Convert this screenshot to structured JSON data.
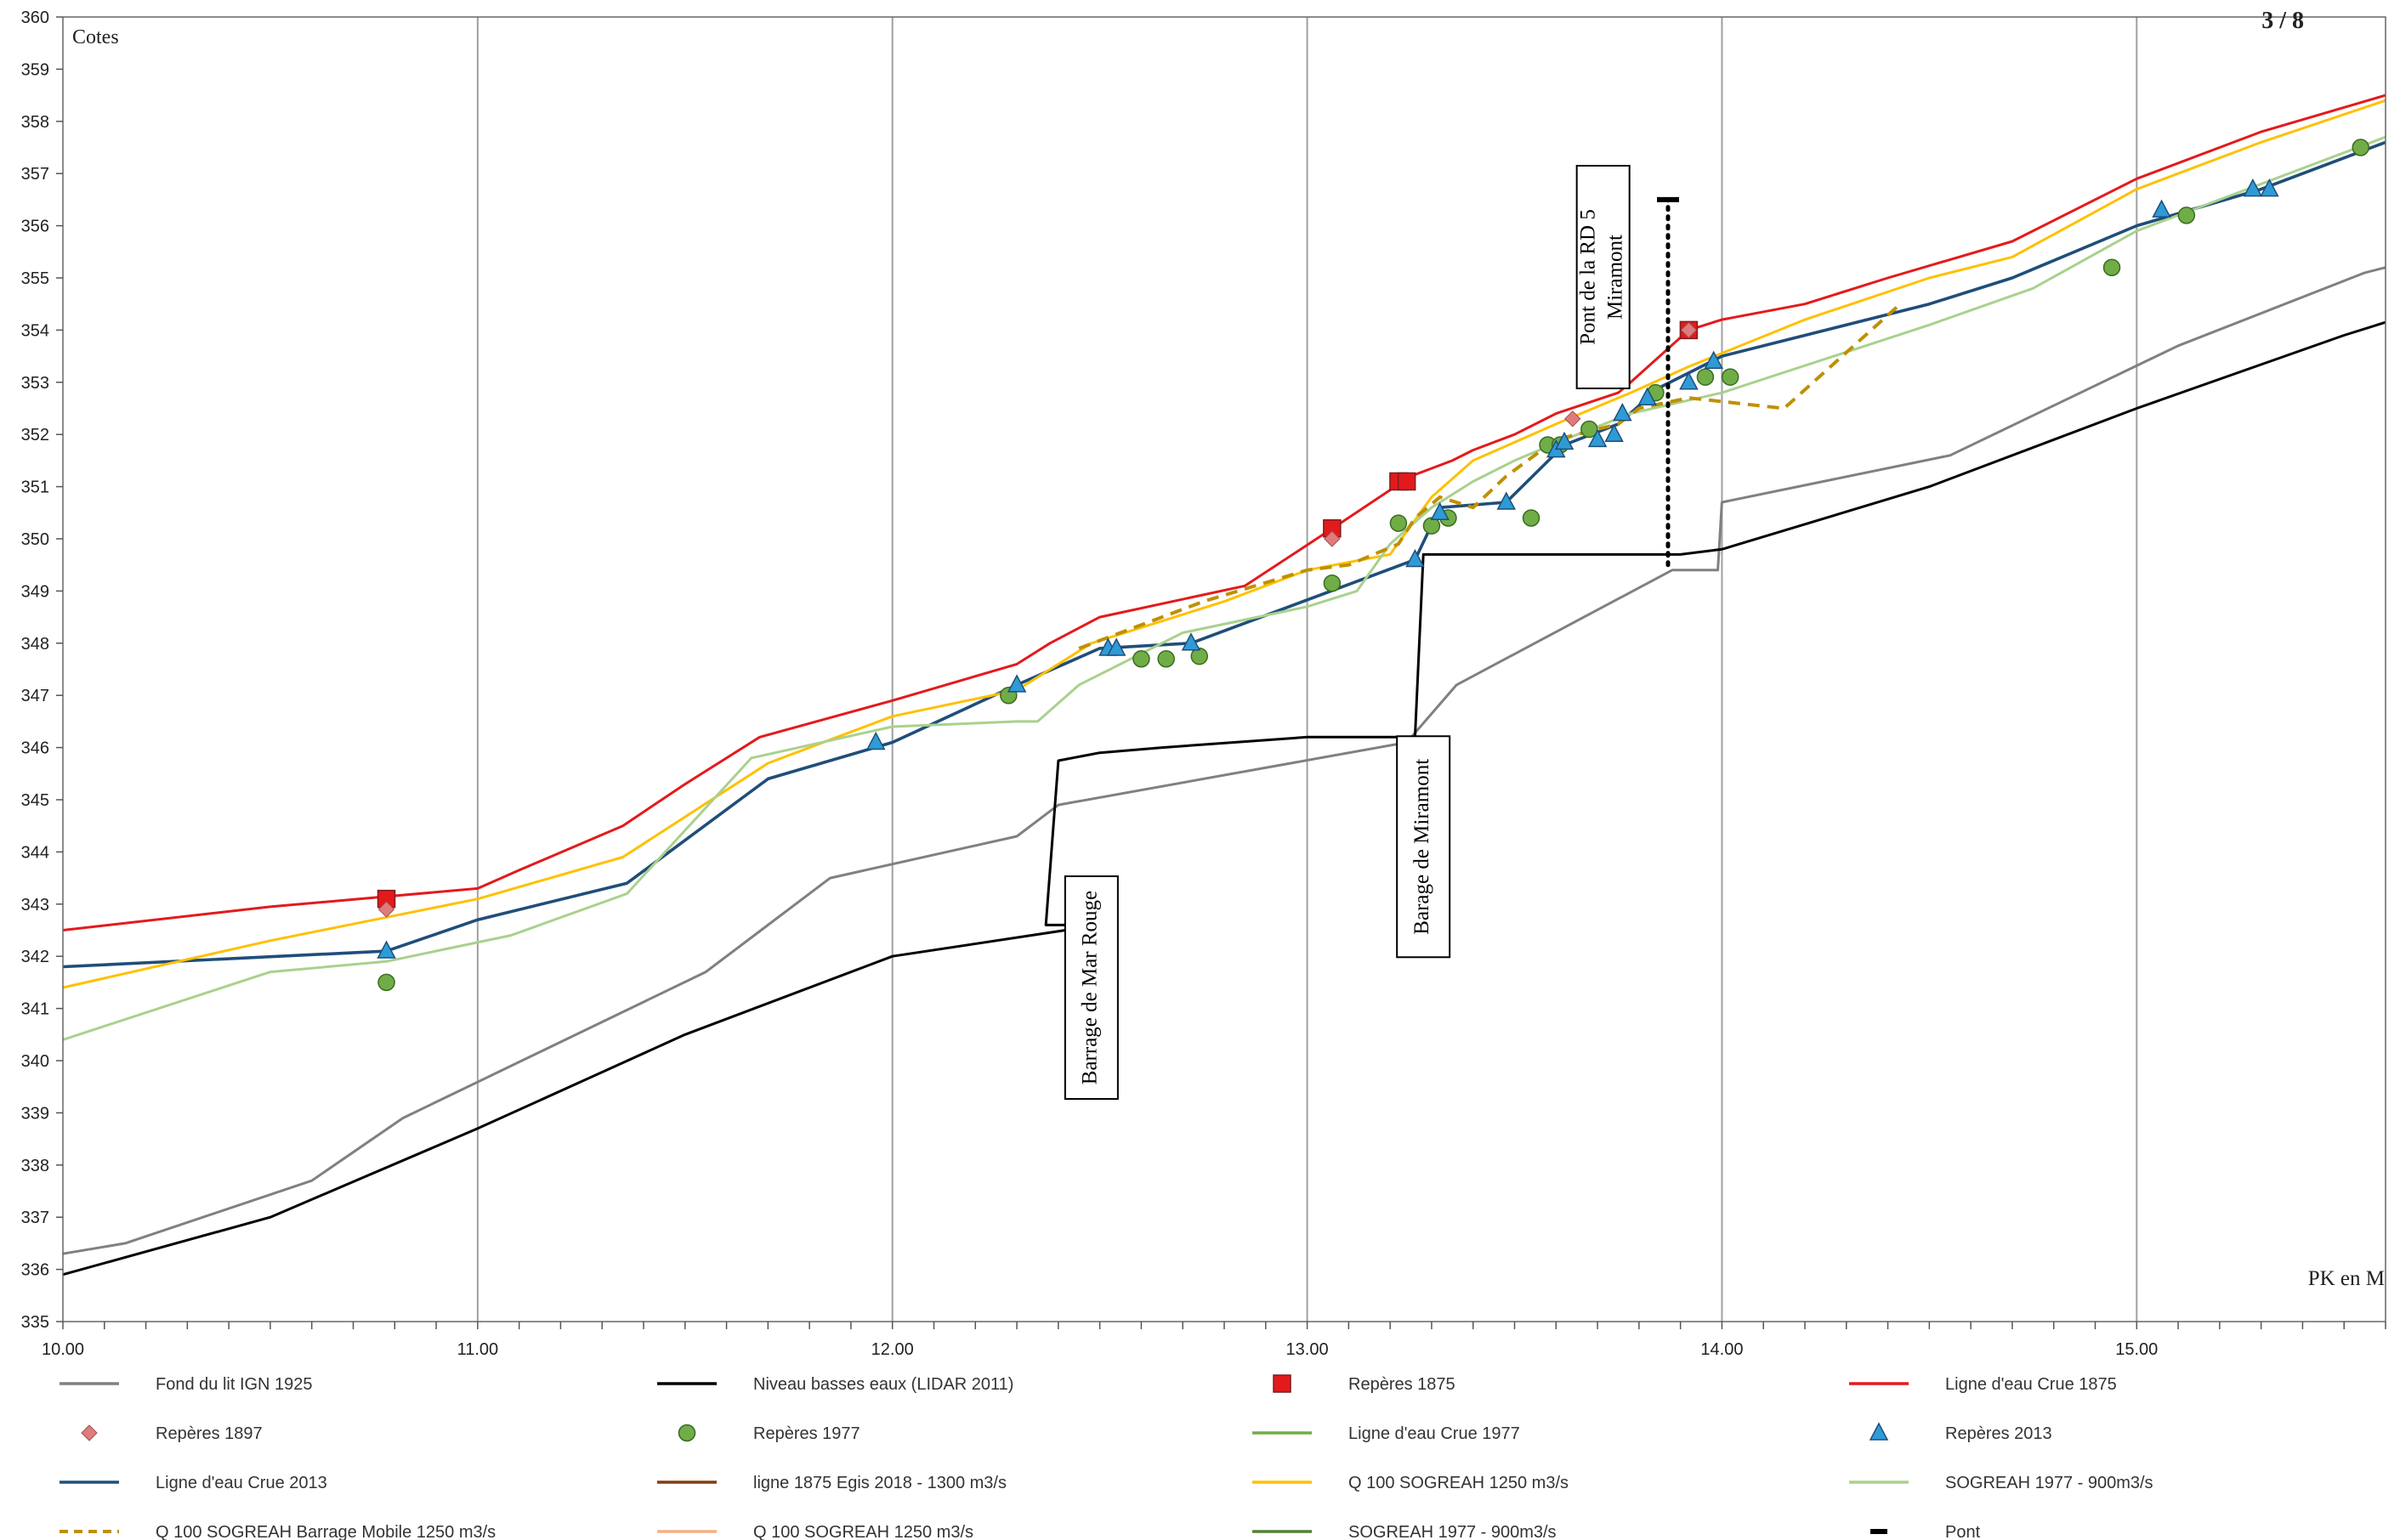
{
  "chart_data": {
    "type": "line",
    "ylabel": "Cotes",
    "xlabel": "PK en  M",
    "page_number": "3 / 8",
    "xlim": [
      10,
      15.6
    ],
    "ylim": [
      335,
      360
    ],
    "x_ticks": [
      "10.00",
      "11.00",
      "12.00",
      "13.00",
      "14.00",
      "15.00"
    ],
    "y_ticks": [
      "335",
      "336",
      "337",
      "338",
      "339",
      "340",
      "341",
      "342",
      "343",
      "344",
      "345",
      "346",
      "347",
      "348",
      "349",
      "350",
      "351",
      "352",
      "353",
      "354",
      "355",
      "356",
      "357",
      "358",
      "359",
      "360"
    ],
    "grid": "vertical",
    "legend_position": "bottom",
    "annotations": [
      {
        "text": "Barrage de Mar Rouge",
        "x": 12.48,
        "y": 341.4
      },
      {
        "text": "Barage de Miramont",
        "x": 13.28,
        "y": 344.1
      },
      {
        "text": "Pont de la RD 5",
        "x": 13.65,
        "y": 355.0
      },
      {
        "text": "Miramont",
        "x": 13.7,
        "y": 355.0
      }
    ],
    "series": [
      {
        "name": "Fond du lit IGN 1925",
        "type": "line",
        "color": "#808080",
        "x": [
          10.0,
          10.15,
          10.6,
          10.82,
          11.55,
          11.85,
          12.3,
          12.4,
          13.24,
          13.36,
          13.88,
          13.99,
          14.0,
          14.55,
          15.1,
          15.55,
          15.6
        ],
        "y": [
          336.3,
          336.5,
          337.7,
          338.9,
          341.7,
          343.5,
          344.3,
          344.9,
          346.1,
          347.2,
          349.4,
          349.4,
          350.7,
          351.6,
          353.7,
          355.1,
          355.2
        ]
      },
      {
        "name": "Niveau basses eaux (LIDAR 2011)",
        "type": "line",
        "color": "#000000",
        "x": [
          10.0,
          10.5,
          11.0,
          11.5,
          12.0,
          12.5,
          12.37,
          12.4,
          12.5,
          12.65,
          13.0,
          13.26,
          13.28,
          13.9,
          14.0,
          14.5,
          15.0,
          15.5,
          15.6
        ],
        "y": [
          335.9,
          337.0,
          338.7,
          340.5,
          342.0,
          342.6,
          342.6,
          345.75,
          345.9,
          346.0,
          346.2,
          346.2,
          349.7,
          349.7,
          349.8,
          351.0,
          352.5,
          353.9,
          354.15
        ]
      },
      {
        "name": "Repères 1875",
        "type": "scatter",
        "marker": "square",
        "color": "#e31a1c",
        "x": [
          10.78,
          13.06,
          13.22,
          13.24,
          13.92
        ],
        "y": [
          343.1,
          350.2,
          351.1,
          351.1,
          354.0
        ]
      },
      {
        "name": "Ligne d'eau Crue 1875",
        "type": "line",
        "color": "#e31a1c",
        "x": [
          10.0,
          10.5,
          11.0,
          11.1,
          11.35,
          11.5,
          11.68,
          12.0,
          12.3,
          12.38,
          12.5,
          12.85,
          13.08,
          13.25,
          13.3,
          13.35,
          13.4,
          13.5,
          13.6,
          13.75,
          13.78,
          13.92,
          14.0,
          14.2,
          14.4,
          14.7,
          15.0,
          15.3,
          15.6
        ],
        "y": [
          342.5,
          342.95,
          343.3,
          343.65,
          344.5,
          345.3,
          346.2,
          346.9,
          347.6,
          348.0,
          348.5,
          349.1,
          350.3,
          351.2,
          351.35,
          351.5,
          351.7,
          352.0,
          352.4,
          352.8,
          353.0,
          354.0,
          354.2,
          354.5,
          355.0,
          355.7,
          356.9,
          357.8,
          358.5
        ]
      },
      {
        "name": "Repères 1897",
        "type": "scatter",
        "marker": "diamond",
        "color": "#e07b7b",
        "x": [
          10.78,
          13.06,
          13.64,
          13.92
        ],
        "y": [
          342.9,
          350.0,
          352.3,
          354.0
        ]
      },
      {
        "name": "Repères 1977",
        "type": "scatter",
        "marker": "circle",
        "color": "#70ad47",
        "x": [
          10.78,
          12.28,
          12.6,
          12.66,
          12.74,
          13.06,
          13.22,
          13.3,
          13.34,
          13.54,
          13.58,
          13.61,
          13.68,
          13.84,
          13.96,
          14.02,
          14.94,
          15.12,
          15.54
        ],
        "y": [
          341.5,
          347.0,
          347.7,
          347.7,
          347.75,
          349.15,
          350.3,
          350.25,
          350.4,
          350.4,
          351.8,
          351.8,
          352.1,
          352.8,
          353.1,
          353.1,
          355.2,
          356.2,
          357.5
        ]
      },
      {
        "name": "Ligne d'eau Crue 1977",
        "type": "line",
        "color": "#70ad47",
        "x": [],
        "y": []
      },
      {
        "name": "Repères 2013",
        "type": "scatter",
        "marker": "triangle",
        "color": "#2e9bd6",
        "x": [
          10.78,
          11.96,
          12.3,
          12.52,
          12.54,
          12.72,
          13.26,
          13.32,
          13.48,
          13.6,
          13.62,
          13.7,
          13.74,
          13.82,
          13.76,
          13.92,
          13.98,
          15.06,
          15.28,
          15.32
        ],
        "y": [
          342.1,
          346.1,
          347.2,
          347.9,
          347.9,
          348.0,
          349.6,
          350.5,
          350.7,
          351.7,
          351.85,
          351.9,
          352.0,
          352.7,
          352.4,
          353.0,
          353.4,
          356.3,
          356.7,
          356.7
        ]
      },
      {
        "name": "Ligne d'eau Crue 2013",
        "type": "line",
        "color": "#1f4e79",
        "x": [
          10.0,
          10.78,
          11.0,
          11.36,
          11.7,
          12.0,
          12.3,
          12.5,
          12.72,
          13.26,
          13.32,
          13.48,
          13.62,
          13.75,
          13.85,
          14.0,
          14.5,
          14.7,
          15.0,
          15.3,
          15.6
        ],
        "y": [
          341.8,
          342.1,
          342.7,
          343.4,
          345.4,
          346.1,
          347.2,
          347.9,
          348.0,
          349.6,
          350.6,
          350.7,
          351.8,
          352.2,
          352.9,
          353.5,
          354.5,
          355.0,
          356.0,
          356.7,
          357.6
        ]
      },
      {
        "name": "ligne 1875 Egis 2018 - 1300 m3/s",
        "type": "line",
        "color": "#843c0c",
        "x": [],
        "y": []
      },
      {
        "name": "Q 100 SOGREAH 1250 m3/s",
        "type": "line",
        "color": "#ffc000",
        "x": [
          10.0,
          10.5,
          11.0,
          11.35,
          11.7,
          12.0,
          12.3,
          12.48,
          12.8,
          13.0,
          13.2,
          13.3,
          13.4,
          13.6,
          13.78,
          13.92,
          14.2,
          14.5,
          14.7,
          15.0,
          15.3,
          15.6
        ],
        "y": [
          341.4,
          342.3,
          343.1,
          343.9,
          345.7,
          346.6,
          347.1,
          348.0,
          348.8,
          349.4,
          349.7,
          350.8,
          351.5,
          352.2,
          352.8,
          353.3,
          354.2,
          355.0,
          355.4,
          356.7,
          357.6,
          358.4
        ]
      },
      {
        "name": "SOGREAH 1977 - 900m3/s",
        "type": "line",
        "color": "#a9d18e",
        "x": [
          10.0,
          10.5,
          10.78,
          11.08,
          11.36,
          11.66,
          12.0,
          12.3,
          12.35,
          12.45,
          12.7,
          13.0,
          13.12,
          13.2,
          13.3,
          13.4,
          13.5,
          13.62,
          13.78,
          14.0,
          14.5,
          14.75,
          15.0,
          15.6
        ],
        "y": [
          340.4,
          341.7,
          341.9,
          342.4,
          343.2,
          345.8,
          346.4,
          346.5,
          346.5,
          347.2,
          348.2,
          348.7,
          349.0,
          349.9,
          350.6,
          351.1,
          351.5,
          351.9,
          352.4,
          352.8,
          354.1,
          354.8,
          355.9,
          357.7
        ]
      },
      {
        "name": "Q 100 SOGREAH Barrage Mobile 1250 m3/s",
        "type": "line",
        "dashed": true,
        "color": "#bf9000",
        "x": [
          12.45,
          12.75,
          13.0,
          13.1,
          13.22,
          13.26,
          13.32,
          13.4,
          13.48,
          13.6,
          13.75,
          13.8,
          13.92,
          14.15,
          14.43
        ],
        "y": [
          347.9,
          348.8,
          349.4,
          349.5,
          349.9,
          350.4,
          350.8,
          350.6,
          351.2,
          351.9,
          352.2,
          352.5,
          352.7,
          352.5,
          354.5
        ]
      },
      {
        "name": "Q 100 SOGREAH 1250 m3/s",
        "type": "line",
        "color": "#f4b183",
        "x": [],
        "y": []
      },
      {
        "name": "SOGREAH 1977 - 900m3/s",
        "type": "line",
        "color": "#548235",
        "x": [],
        "y": []
      },
      {
        "name": "Pont",
        "type": "marker",
        "color": "#000000",
        "x": [
          13.87,
          13.87
        ],
        "y": [
          349.5,
          356.5
        ]
      }
    ]
  }
}
